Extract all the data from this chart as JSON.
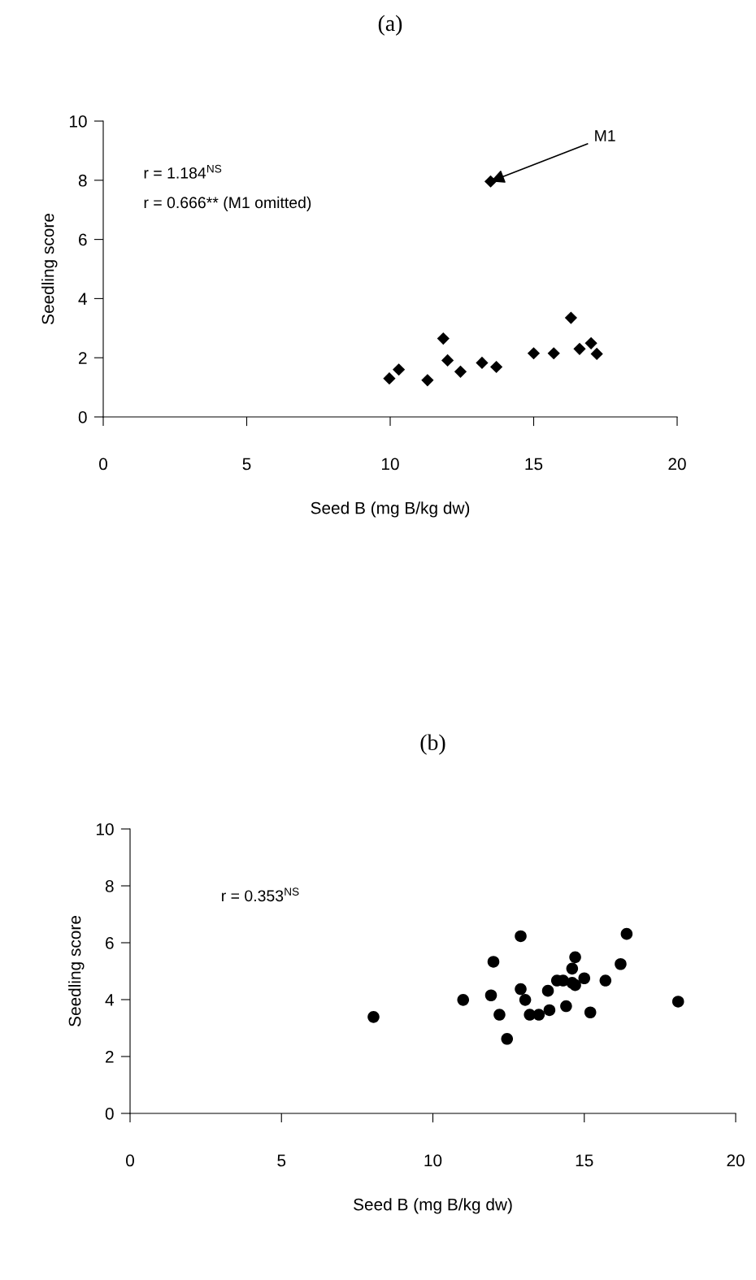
{
  "chart_data": [
    {
      "type": "scatter",
      "title": "(a)",
      "xlabel": "Seed B (mg B/kg dw)",
      "ylabel": "Seedling score",
      "marker": "diamond",
      "xlim": [
        0,
        20
      ],
      "xticks": [
        0,
        5,
        10,
        15,
        20
      ],
      "ylim": [
        0,
        10
      ],
      "yticks": [
        0,
        2,
        4,
        6,
        8,
        10
      ],
      "annotations": [
        "r = 1.184$^{NS}$",
        "r = 0.666** (M1 omitted)",
        {
          "text": "M1",
          "x": 13.5,
          "y": 7.96
        }
      ],
      "series": [
        {
          "color": "#000000",
          "x": [
            9.97,
            10.3,
            11.3,
            11.85,
            12.0,
            12.45,
            13.2,
            13.7,
            13.5,
            15.0,
            15.7,
            16.3,
            16.6,
            17.0,
            17.2
          ],
          "values": [
            1.3,
            1.6,
            1.24,
            2.65,
            1.91,
            1.53,
            1.83,
            1.69,
            7.96,
            2.15,
            2.15,
            3.35,
            2.3,
            2.49,
            2.13
          ]
        }
      ]
    },
    {
      "type": "scatter",
      "title": "(b)",
      "xlabel": "Seed B (mg B/kg dw)",
      "ylabel": "Seedling score",
      "marker": "circle",
      "xlim": [
        0,
        20
      ],
      "xticks": [
        0,
        5,
        10,
        15,
        20
      ],
      "ylim": [
        0,
        10
      ],
      "yticks": [
        0,
        2,
        4,
        6,
        8,
        10
      ],
      "annotations": [
        "r = 0.353$^{NS}$"
      ],
      "series": [
        {
          "color": "#000000",
          "x": [
            8.04,
            11.0,
            11.92,
            12.0,
            12.2,
            12.45,
            12.9,
            12.9,
            13.05,
            13.2,
            13.5,
            13.8,
            13.85,
            14.1,
            14.3,
            14.4,
            14.6,
            14.6,
            14.7,
            14.7,
            15.0,
            15.2,
            15.7,
            16.2,
            16.4,
            18.1
          ],
          "values": [
            3.39,
            3.99,
            4.15,
            5.33,
            3.47,
            2.62,
            6.23,
            4.37,
            3.99,
            3.47,
            3.47,
            4.31,
            3.63,
            4.67,
            4.67,
            3.77,
            4.59,
            5.09,
            5.49,
            4.51,
            4.75,
            3.55,
            4.67,
            5.25,
            6.31,
            3.93
          ]
        }
      ]
    }
  ]
}
